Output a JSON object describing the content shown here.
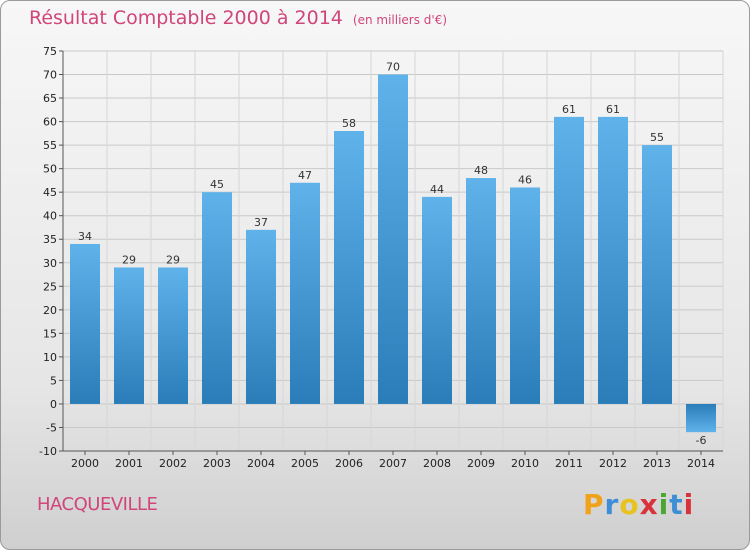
{
  "title": "Résultat Comptable 2000 à 2014",
  "unit": "(en milliers d'€)",
  "city": "HACQUEVILLE",
  "logo": {
    "letters": [
      "P",
      "r",
      "o",
      "x",
      "i",
      "t",
      "i"
    ],
    "colors": [
      "#f0a31a",
      "#3e8ed6",
      "#e8c21f",
      "#d8323a",
      "#4aa832",
      "#3e8ed6",
      "#d8323a"
    ]
  },
  "colors": {
    "bar_top": "#5fb2ea",
    "bar_bottom": "#2a7db8",
    "title": "#d0457a"
  },
  "chart_data": {
    "type": "bar",
    "title": "Résultat Comptable 2000 à 2014",
    "xlabel": "",
    "ylabel": "",
    "categories": [
      "2000",
      "2001",
      "2002",
      "2003",
      "2004",
      "2005",
      "2006",
      "2007",
      "2008",
      "2009",
      "2010",
      "2011",
      "2012",
      "2013",
      "2014"
    ],
    "values": [
      34,
      29,
      29,
      45,
      37,
      47,
      58,
      70,
      44,
      48,
      46,
      61,
      61,
      55,
      -6
    ],
    "ylim": [
      -10,
      75
    ],
    "yticks": [
      -10,
      -5,
      0,
      5,
      10,
      15,
      20,
      25,
      30,
      35,
      40,
      45,
      50,
      55,
      60,
      65,
      70,
      75
    ],
    "grid": true
  }
}
